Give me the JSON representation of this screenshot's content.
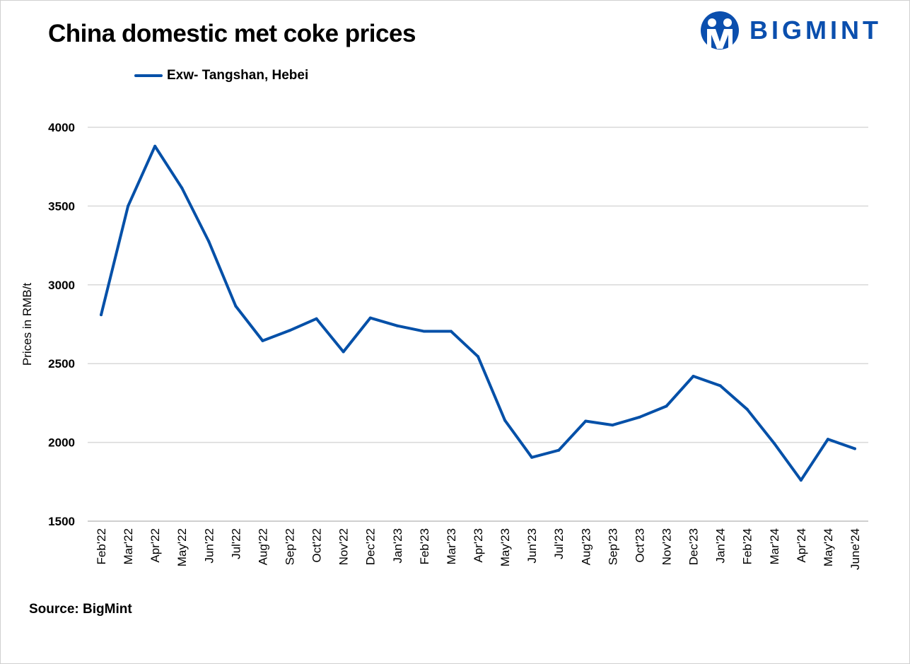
{
  "chart_data": {
    "type": "line",
    "title": "China domestic met coke prices",
    "ylabel": "Prices in RMB/t",
    "xlabel": "",
    "ylim": [
      1500,
      4000
    ],
    "yticks": [
      1500,
      2000,
      2500,
      3000,
      3500,
      4000
    ],
    "grid": true,
    "legend_placement": "top-left",
    "categories": [
      "Feb'22",
      "Mar'22",
      "Apr'22",
      "May'22",
      "Jun'22",
      "Jul'22",
      "Aug'22",
      "Sep'22",
      "Oct'22",
      "Nov'22",
      "Dec'22",
      "Jan'23",
      "Feb'23",
      "Mar'23",
      "Apr'23",
      "May'23",
      "Jun'23",
      "Jul'23",
      "Aug'23",
      "Sep'23",
      "Oct'23",
      "Nov'23",
      "Dec'23",
      "Jan'24",
      "Feb'24",
      "Mar'24",
      "Apr'24",
      "May'24",
      "June'24"
    ],
    "series": [
      {
        "name": "Exw- Tangshan, Hebei",
        "color": "#0450a8",
        "values": [
          2810,
          3500,
          3880,
          3615,
          3275,
          2865,
          2645,
          2710,
          2785,
          2575,
          2790,
          2740,
          2705,
          2705,
          2545,
          2140,
          1905,
          1950,
          2135,
          2110,
          2160,
          2230,
          2420,
          2360,
          2210,
          1995,
          1760,
          2020,
          1960
        ]
      }
    ]
  },
  "source": "Source: BigMint",
  "logo": {
    "text": "BIGMINT",
    "color": "#0b4fae"
  }
}
